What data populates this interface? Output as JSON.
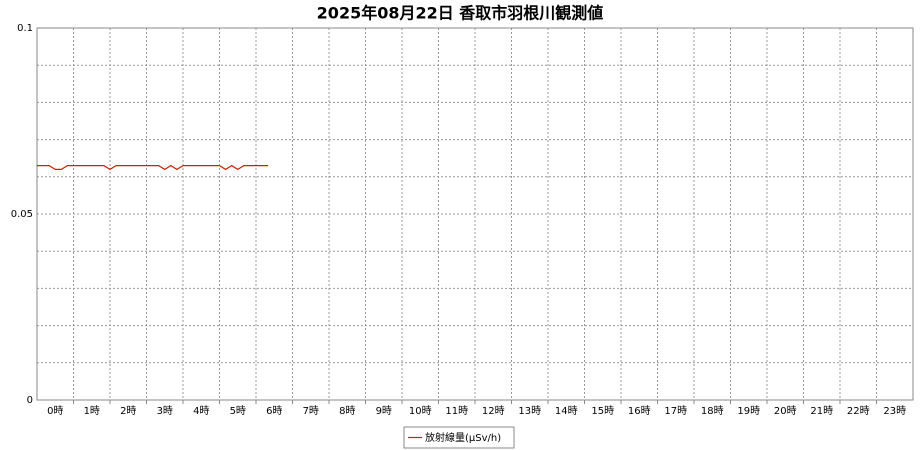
{
  "chart_data": {
    "type": "line",
    "title": "2025年08月22日 香取市羽根川観測値",
    "categories": [
      "0時",
      "1時",
      "2時",
      "3時",
      "4時",
      "5時",
      "6時",
      "7時",
      "8時",
      "9時",
      "10時",
      "11時",
      "12時",
      "13時",
      "14時",
      "15時",
      "16時",
      "17時",
      "18時",
      "19時",
      "20時",
      "21時",
      "22時",
      "23時"
    ],
    "x": [
      0,
      10,
      20,
      30,
      40,
      50,
      60,
      70,
      80,
      90,
      100,
      110,
      120,
      130,
      140,
      150,
      160,
      170,
      180,
      190,
      200,
      210,
      220,
      230,
      240,
      250,
      260,
      270,
      280,
      290,
      300,
      310,
      320,
      330,
      340,
      350,
      360,
      370,
      380
    ],
    "xlim": [
      0,
      1440
    ],
    "series": [
      {
        "name": "放射線量(μSv/h)",
        "color": "#cc2200",
        "values": [
          0.063,
          0.063,
          0.063,
          0.062,
          0.062,
          0.063,
          0.063,
          0.063,
          0.063,
          0.063,
          0.063,
          0.063,
          0.062,
          0.063,
          0.063,
          0.063,
          0.063,
          0.063,
          0.063,
          0.063,
          0.063,
          0.062,
          0.063,
          0.062,
          0.063,
          0.063,
          0.063,
          0.063,
          0.063,
          0.063,
          0.063,
          0.062,
          0.063,
          0.062,
          0.063,
          0.063,
          0.063,
          0.063,
          0.063
        ]
      }
    ],
    "ylim": [
      0,
      0.1
    ],
    "yticks": [
      0,
      0.05,
      0.1
    ],
    "yminorticks": [
      0.01,
      0.02,
      0.03,
      0.04,
      0.06,
      0.07,
      0.08,
      0.09
    ],
    "grid": true
  }
}
